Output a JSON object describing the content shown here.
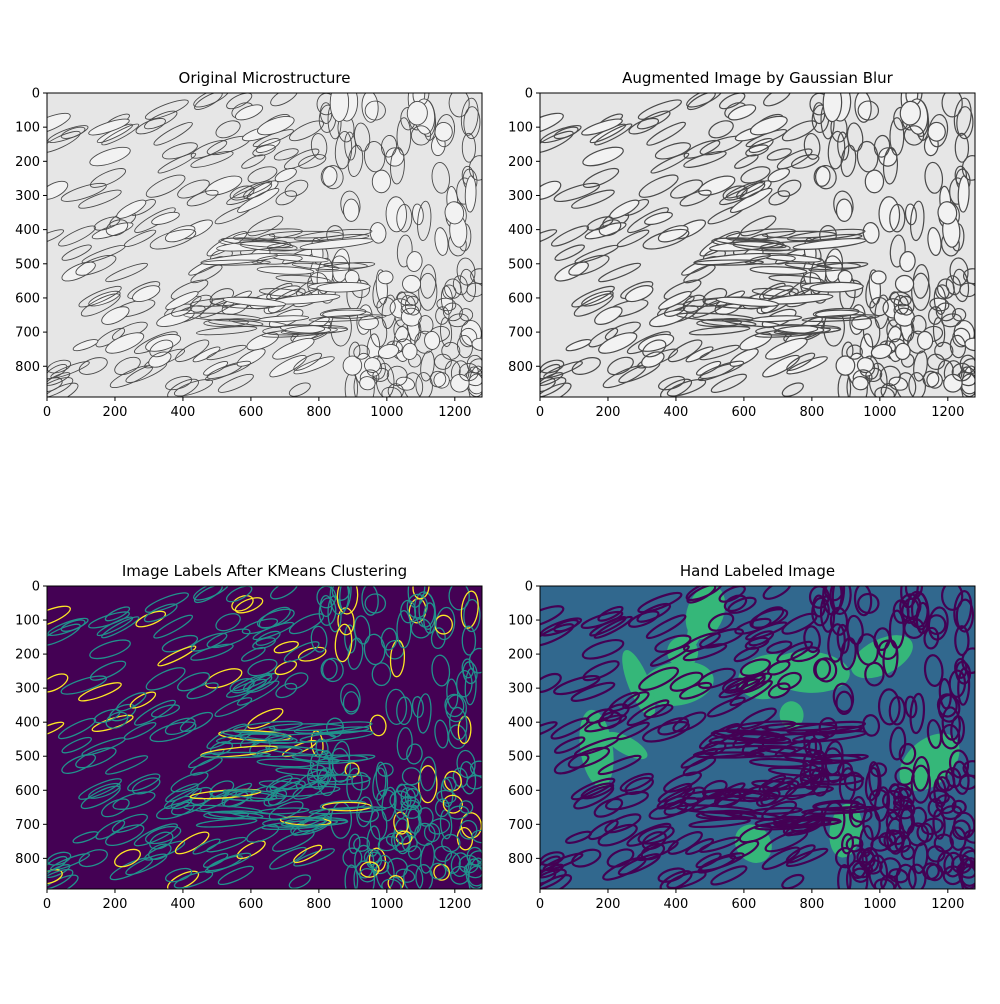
{
  "figure": {
    "colors": {
      "viridis_dark": "#440154",
      "viridis_blue": "#31688e",
      "viridis_teal": "#21918c",
      "viridis_green": "#35b779",
      "viridis_yellow": "#fde725",
      "gray_light": "#e6e6e6",
      "gray_dark": "#4a4a4a"
    }
  },
  "chart_data": [
    {
      "type": "heatmap",
      "title": "Original Microstructure",
      "xlim": [
        0,
        1280
      ],
      "ylim": [
        890,
        0
      ],
      "x_ticks": [
        0,
        200,
        400,
        600,
        800,
        1000,
        1200
      ],
      "y_ticks": [
        0,
        100,
        200,
        300,
        400,
        500,
        600,
        700,
        800
      ],
      "x_tick_labels": [
        "0",
        "200",
        "400",
        "600",
        "800",
        "1000",
        "1200"
      ],
      "y_tick_labels": [
        "0",
        "100",
        "200",
        "300",
        "400",
        "500",
        "600",
        "700",
        "800"
      ],
      "colormap": "gray"
    },
    {
      "type": "heatmap",
      "title": "Augmented Image by Gaussian Blur",
      "xlim": [
        0,
        1280
      ],
      "ylim": [
        890,
        0
      ],
      "x_ticks": [
        0,
        200,
        400,
        600,
        800,
        1000,
        1200
      ],
      "y_ticks": [
        0,
        100,
        200,
        300,
        400,
        500,
        600,
        700,
        800
      ],
      "x_tick_labels": [
        "0",
        "200",
        "400",
        "600",
        "800",
        "1000",
        "1200"
      ],
      "y_tick_labels": [
        "0",
        "100",
        "200",
        "300",
        "400",
        "500",
        "600",
        "700",
        "800"
      ],
      "colormap": "gray"
    },
    {
      "type": "heatmap",
      "title": "Image Labels After KMeans Clustering",
      "xlim": [
        0,
        1280
      ],
      "ylim": [
        890,
        0
      ],
      "x_ticks": [
        0,
        200,
        400,
        600,
        800,
        1000,
        1200
      ],
      "y_ticks": [
        0,
        100,
        200,
        300,
        400,
        500,
        600,
        700,
        800
      ],
      "x_tick_labels": [
        "0",
        "200",
        "400",
        "600",
        "800",
        "1000",
        "1200"
      ],
      "y_tick_labels": [
        "0",
        "100",
        "200",
        "300",
        "400",
        "500",
        "600",
        "700",
        "800"
      ],
      "colormap": "viridis"
    },
    {
      "type": "heatmap",
      "title": "Hand Labeled Image",
      "xlim": [
        0,
        1280
      ],
      "ylim": [
        890,
        0
      ],
      "x_ticks": [
        0,
        200,
        400,
        600,
        800,
        1000,
        1200
      ],
      "y_ticks": [
        0,
        100,
        200,
        300,
        400,
        500,
        600,
        700,
        800
      ],
      "x_tick_labels": [
        "0",
        "200",
        "400",
        "600",
        "800",
        "1000",
        "1200"
      ],
      "y_tick_labels": [
        "0",
        "100",
        "200",
        "300",
        "400",
        "500",
        "600",
        "700",
        "800"
      ],
      "colormap": "viridis"
    }
  ]
}
